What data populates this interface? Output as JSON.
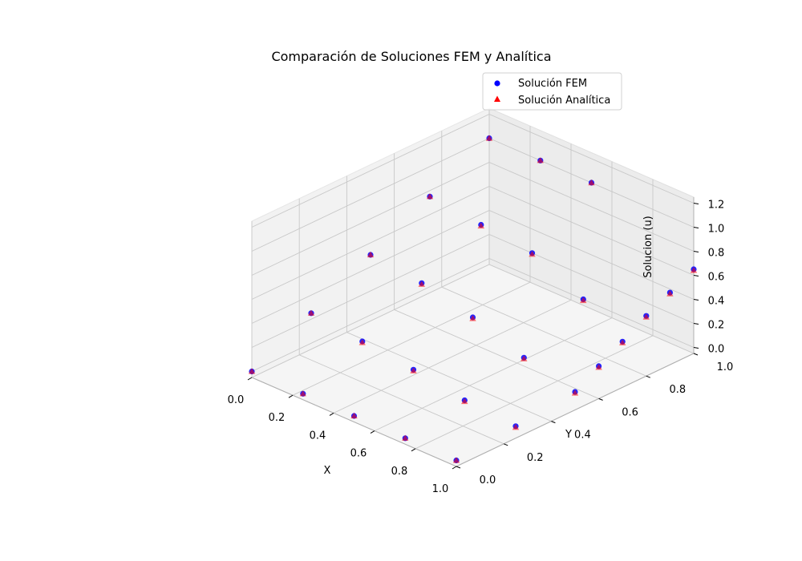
{
  "chart_data": {
    "type": "scatter",
    "title": "Comparación de Soluciones FEM y Analítica",
    "xlabel": "X",
    "ylabel": "Y",
    "zlabel": "Solucion (u)",
    "xlim": [
      0,
      1
    ],
    "ylim": [
      0,
      1
    ],
    "zlim": [
      0,
      1.2
    ],
    "xticks": [
      "0.0",
      "0.2",
      "0.4",
      "0.6",
      "0.8",
      "1.0"
    ],
    "yticks": [
      "0.0",
      "0.2",
      "0.4",
      "0.6",
      "0.8",
      "1.0"
    ],
    "zticks": [
      "0.0",
      "0.2",
      "0.4",
      "0.6",
      "0.8",
      "1.0",
      "1.2"
    ],
    "grid": true,
    "legend_position": "top-right",
    "colors": {
      "fem": "#0000ff",
      "analytic": "#ff0000"
    },
    "series": [
      {
        "name": "Solución FEM",
        "marker": "circle",
        "points": [
          [
            0.0,
            0.0,
            0.0
          ],
          [
            0.0,
            0.25,
            0.25
          ],
          [
            0.0,
            0.5,
            0.5
          ],
          [
            0.0,
            0.75,
            0.75
          ],
          [
            0.0,
            1.0,
            1.0
          ],
          [
            0.25,
            0.0,
            0.0
          ],
          [
            0.25,
            0.25,
            0.2
          ],
          [
            0.25,
            0.5,
            0.45
          ],
          [
            0.25,
            0.75,
            0.7
          ],
          [
            0.25,
            1.0,
            1.0
          ],
          [
            0.5,
            0.0,
            0.0
          ],
          [
            0.5,
            0.25,
            0.15
          ],
          [
            0.5,
            0.5,
            0.35
          ],
          [
            0.5,
            0.75,
            0.65
          ],
          [
            0.5,
            1.0,
            1.0
          ],
          [
            0.75,
            0.0,
            0.0
          ],
          [
            0.75,
            0.25,
            0.08
          ],
          [
            0.75,
            0.5,
            0.2
          ],
          [
            0.75,
            0.75,
            0.45
          ],
          [
            1.0,
            0.0,
            0.0
          ],
          [
            1.0,
            0.25,
            0.05
          ],
          [
            1.0,
            0.5,
            0.1
          ],
          [
            1.0,
            0.6,
            0.22
          ],
          [
            1.0,
            0.7,
            0.33
          ],
          [
            1.0,
            0.8,
            0.45
          ],
          [
            1.0,
            0.9,
            0.55
          ],
          [
            1.0,
            1.0,
            0.65
          ]
        ]
      },
      {
        "name": "Solución Analítica",
        "marker": "triangle",
        "points": [
          [
            0.0,
            0.0,
            0.0
          ],
          [
            0.0,
            0.25,
            0.25
          ],
          [
            0.0,
            0.5,
            0.5
          ],
          [
            0.0,
            0.75,
            0.75
          ],
          [
            0.0,
            1.0,
            1.0
          ],
          [
            0.25,
            0.0,
            0.0
          ],
          [
            0.25,
            0.25,
            0.19
          ],
          [
            0.25,
            0.5,
            0.44
          ],
          [
            0.25,
            0.75,
            0.69
          ],
          [
            0.25,
            1.0,
            1.0
          ],
          [
            0.5,
            0.0,
            0.0
          ],
          [
            0.5,
            0.25,
            0.14
          ],
          [
            0.5,
            0.5,
            0.34
          ],
          [
            0.5,
            0.75,
            0.64
          ],
          [
            0.5,
            1.0,
            1.0
          ],
          [
            0.75,
            0.0,
            0.0
          ],
          [
            0.75,
            0.25,
            0.07
          ],
          [
            0.75,
            0.5,
            0.19
          ],
          [
            0.75,
            0.75,
            0.44
          ],
          [
            1.0,
            0.0,
            0.0
          ],
          [
            1.0,
            0.25,
            0.04
          ],
          [
            1.0,
            0.5,
            0.09
          ],
          [
            1.0,
            0.6,
            0.21
          ],
          [
            1.0,
            0.7,
            0.32
          ],
          [
            1.0,
            0.8,
            0.44
          ],
          [
            1.0,
            0.9,
            0.54
          ],
          [
            1.0,
            1.0,
            0.64
          ]
        ]
      }
    ]
  }
}
